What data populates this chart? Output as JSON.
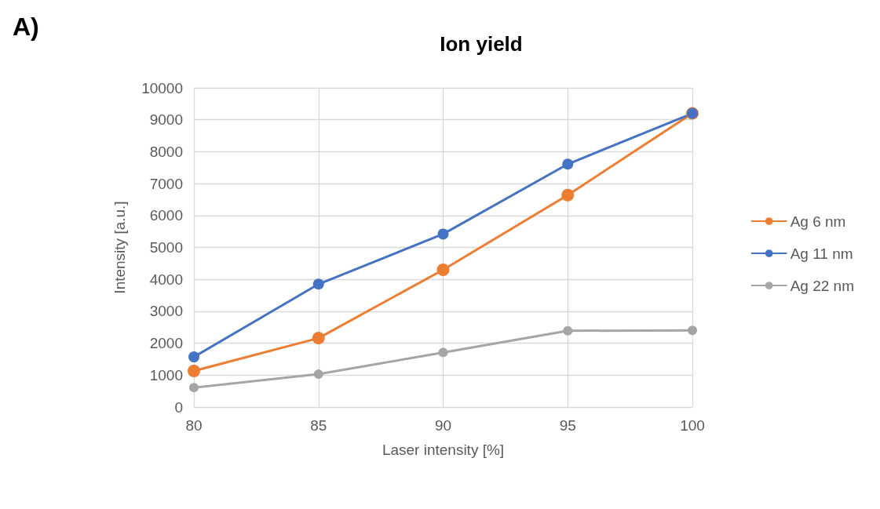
{
  "chart_data": {
    "type": "line",
    "title": "Ion yield",
    "xlabel": "Laser intensity [%]",
    "ylabel": "Intensity [a.u.]",
    "annotations": [
      "A)"
    ],
    "x": [
      80,
      85,
      90,
      95,
      100
    ],
    "series": [
      {
        "name": "Ag 6 nm",
        "color": "#ed7d31",
        "values": [
          1130,
          2160,
          4300,
          6640,
          9200
        ]
      },
      {
        "name": "Ag 11 nm",
        "color": "#4472c4",
        "values": [
          1570,
          3850,
          5420,
          7610,
          9200
        ]
      },
      {
        "name": "Ag 22 nm",
        "color": "#a5a5a5",
        "values": [
          610,
          1030,
          1710,
          2390,
          2400
        ]
      }
    ],
    "xlim": [
      80,
      100
    ],
    "xticks": [
      80,
      85,
      90,
      95,
      100
    ],
    "ylim": [
      0,
      10000
    ],
    "yticks": [
      0,
      1000,
      2000,
      3000,
      4000,
      5000,
      6000,
      7000,
      8000,
      9000,
      10000
    ],
    "grid": true,
    "legend": "right",
    "marker": "circle",
    "line_style": "solid"
  }
}
